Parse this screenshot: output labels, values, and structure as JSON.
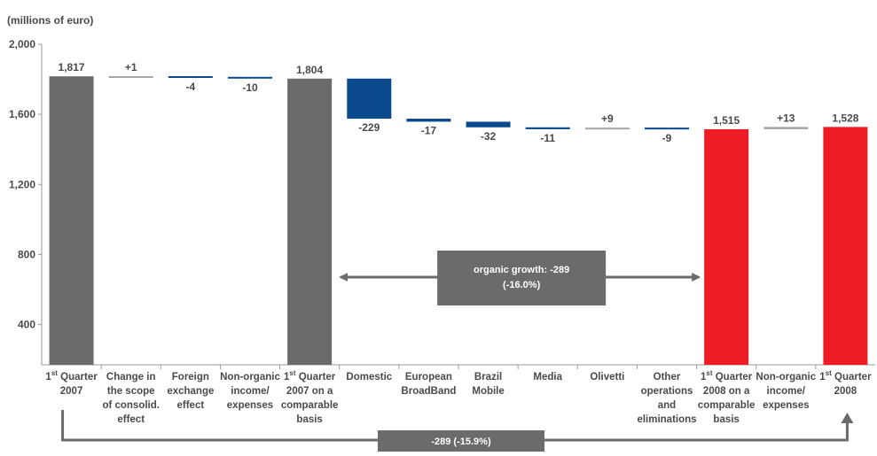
{
  "chart_data": {
    "type": "bar",
    "subtype": "waterfall",
    "unit_label": "(millions of euro)",
    "ylim": [
      170,
      2000
    ],
    "yticks": [
      400,
      800,
      1200,
      1600,
      2000
    ],
    "ytick_labels": [
      "400",
      "800",
      "1,200",
      "1,600",
      "2,000"
    ],
    "grid": false,
    "colors": {
      "total": "#6b6b6e",
      "organic": "#0a4a8c",
      "final": "#ee1c25",
      "small": "#a6a6a6",
      "arrow": "#6b6b6e",
      "axis": "#9a9a9a"
    },
    "bars": [
      {
        "label": [
          "1st Quarter",
          "2007"
        ],
        "kind": "total",
        "color_key": "total",
        "start": 0,
        "end": 1817,
        "value_label": "1,817"
      },
      {
        "label": [
          "Change in",
          "the scope",
          "of consolid.",
          "effect"
        ],
        "kind": "delta",
        "color_key": "small",
        "start": 1817,
        "end": 1818,
        "value_label": "+1"
      },
      {
        "label": [
          "Foreign",
          "exchange",
          "effect"
        ],
        "kind": "delta",
        "color_key": "organic",
        "start": 1818,
        "end": 1814,
        "value_label": "-4"
      },
      {
        "label": [
          "Non-organic",
          "income/",
          "expenses"
        ],
        "kind": "delta",
        "color_key": "organic",
        "start": 1814,
        "end": 1804,
        "value_label": "-10"
      },
      {
        "label": [
          "1st Quarter",
          "2007 on a",
          "comparable",
          "basis"
        ],
        "kind": "total",
        "color_key": "total",
        "start": 0,
        "end": 1804,
        "value_label": "1,804"
      },
      {
        "label": [
          "Domestic"
        ],
        "kind": "delta",
        "color_key": "organic",
        "start": 1804,
        "end": 1575,
        "value_label": "-229"
      },
      {
        "label": [
          "European",
          "BroadBand"
        ],
        "kind": "delta",
        "color_key": "organic",
        "start": 1575,
        "end": 1558,
        "value_label": "-17"
      },
      {
        "label": [
          "Brazil",
          "Mobile"
        ],
        "kind": "delta",
        "color_key": "organic",
        "start": 1558,
        "end": 1526,
        "value_label": "-32"
      },
      {
        "label": [
          "Media"
        ],
        "kind": "delta",
        "color_key": "organic",
        "start": 1526,
        "end": 1515,
        "value_label": "-11"
      },
      {
        "label": [
          "Olivetti"
        ],
        "kind": "delta",
        "color_key": "small",
        "start": 1515,
        "end": 1524,
        "value_label": "+9"
      },
      {
        "label": [
          "Other",
          "operations",
          "and",
          "eliminations"
        ],
        "kind": "delta",
        "color_key": "organic",
        "start": 1524,
        "end": 1515,
        "value_label": "-9"
      },
      {
        "label": [
          "1st Quarter",
          "2008 on a",
          "comparable",
          "basis"
        ],
        "kind": "total",
        "color_key": "final",
        "start": 0,
        "end": 1515,
        "value_label": "1,515"
      },
      {
        "label": [
          "Non-organic",
          "income/",
          "expenses"
        ],
        "kind": "delta",
        "color_key": "small",
        "start": 1515,
        "end": 1528,
        "value_label": "+13"
      },
      {
        "label": [
          "1st Quarter",
          "2008"
        ],
        "kind": "total",
        "color_key": "final",
        "start": 0,
        "end": 1528,
        "value_label": "1,528"
      }
    ],
    "annotations": [
      {
        "type": "range-arrow",
        "from_bar": 4,
        "to_bar": 11,
        "text": [
          "organic growth: -289",
          "(-16.0%)"
        ]
      },
      {
        "type": "bottom-connector",
        "from_bar": 0,
        "to_bar": 13,
        "text": [
          "-289 (-15.9%)"
        ]
      }
    ]
  }
}
